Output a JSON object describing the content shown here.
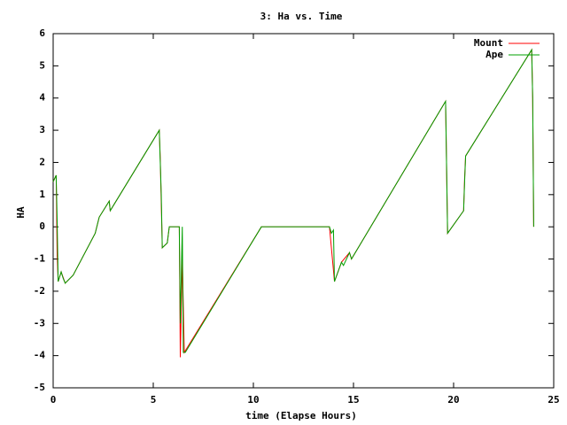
{
  "chart_data": {
    "type": "line",
    "title": "3: Ha vs. Time",
    "x_label": "time (Elapse Hours)",
    "y_label": "HA",
    "xlim": [
      0,
      25
    ],
    "xticks": [
      0,
      5,
      10,
      15,
      20,
      25
    ],
    "ylim": [
      -5,
      6
    ],
    "yticks": [
      -5,
      -4,
      -3,
      -2,
      -1,
      0,
      1,
      2,
      3,
      4,
      5,
      6
    ],
    "legend": "upper right",
    "series": [
      {
        "name": "Mount",
        "color": "#ff0000",
        "x": [
          0,
          0.15,
          0.2,
          0.25,
          0.4,
          0.6,
          1.0,
          2.1,
          2.3,
          2.8,
          2.85,
          5.3,
          5.35,
          5.45,
          5.7,
          5.8,
          6.3,
          6.35,
          6.45,
          6.55,
          10.4,
          13.8,
          14.05,
          14.4,
          14.8,
          14.9,
          19.6,
          19.7,
          20.5,
          20.55,
          20.6,
          23.1,
          23.9,
          23.95,
          24.0
        ],
        "values": [
          1.4,
          1.6,
          -0.9,
          -1.7,
          -1.4,
          -1.75,
          -1.5,
          -0.2,
          0.3,
          0.8,
          0.5,
          3.0,
          2.1,
          -0.65,
          -0.5,
          0,
          0,
          -4.05,
          -1.0,
          -3.9,
          0,
          0,
          -1.7,
          -1.1,
          -0.8,
          -1.0,
          3.9,
          -0.2,
          0.5,
          1.5,
          2.2,
          4.7,
          5.5,
          4.0,
          0
        ]
      },
      {
        "name": "Ape",
        "color": "#00a000",
        "x": [
          0,
          0.15,
          0.2,
          0.25,
          0.4,
          0.5,
          0.6,
          1.0,
          2.1,
          2.3,
          2.7,
          2.8,
          2.85,
          5.3,
          5.4,
          5.45,
          5.7,
          5.8,
          6.3,
          6.35,
          6.45,
          6.5,
          6.6,
          10.4,
          13.8,
          13.9,
          14.0,
          14.05,
          14.4,
          14.5,
          14.8,
          14.9,
          19.6,
          19.7,
          20.5,
          20.55,
          20.6,
          23.9,
          23.95,
          24.0
        ],
        "values": [
          1.4,
          1.6,
          0.2,
          -1.7,
          -1.4,
          -1.6,
          -1.75,
          -1.5,
          -0.2,
          0.3,
          0.7,
          0.8,
          0.5,
          3.0,
          1.0,
          -0.65,
          -0.5,
          0,
          0,
          -3.0,
          0,
          -3.9,
          -3.9,
          0,
          0,
          -0.2,
          -0.1,
          -1.7,
          -1.1,
          -1.2,
          -0.8,
          -1.0,
          3.9,
          -0.2,
          0.5,
          1.4,
          2.2,
          5.5,
          4.0,
          0
        ]
      }
    ]
  }
}
